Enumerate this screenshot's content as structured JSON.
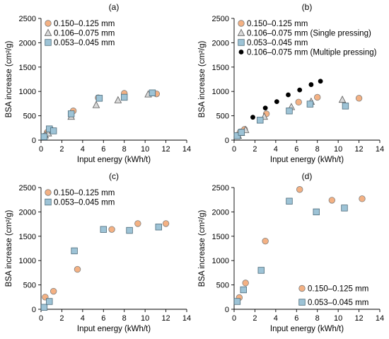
{
  "chart_data": [
    {
      "type": "scatter",
      "title": "(a)",
      "xlabel": "Input energy (kWh/t)",
      "ylabel": "BSA increase (cm²/g)",
      "xlim": [
        0,
        14
      ],
      "ylim": [
        0,
        2500
      ],
      "xticks": [
        "0",
        "2",
        "4",
        "6",
        "8",
        "10",
        "12",
        "14"
      ],
      "yticks": [
        "0",
        "500",
        "1000",
        "1500",
        "2000",
        "2500"
      ],
      "legend_position": "top-left",
      "series": [
        {
          "name": "0.150–0.125 mm",
          "marker": "circle",
          "color": "#f4b183",
          "x": [
            0.3,
            0.6,
            1.0,
            3.1,
            5.5,
            8.0,
            11.1
          ],
          "y": [
            80,
            160,
            200,
            600,
            870,
            960,
            950
          ]
        },
        {
          "name": "0.106–0.075 mm",
          "marker": "triangle",
          "color": "#d9d9d9",
          "x": [
            0.4,
            0.7,
            1.1,
            2.9,
            5.3,
            7.4,
            10.3
          ],
          "y": [
            100,
            140,
            200,
            480,
            720,
            820,
            940
          ]
        },
        {
          "name": "0.053–0.045 mm",
          "marker": "square",
          "color": "#9dc3d6",
          "x": [
            0.3,
            0.8,
            1.2,
            2.9,
            5.6,
            8.0,
            10.7
          ],
          "y": [
            70,
            230,
            190,
            540,
            860,
            880,
            970
          ]
        }
      ]
    },
    {
      "type": "scatter",
      "title": "(b)",
      "xlabel": "Input energy (kWh/t)",
      "ylabel": "BSA increase (cm²/g)",
      "xlim": [
        0,
        14
      ],
      "ylim": [
        0,
        2500
      ],
      "xticks": [
        "0",
        "2",
        "4",
        "6",
        "8",
        "10",
        "12",
        "14"
      ],
      "yticks": [
        "0",
        "500",
        "1000",
        "1500",
        "2000",
        "2500"
      ],
      "legend_position": "top-left",
      "series": [
        {
          "name": "0.150–0.125 mm",
          "marker": "circle",
          "color": "#f4b183",
          "x": [
            0.3,
            0.6,
            1.0,
            3.1,
            6.2,
            8.0,
            12.0
          ],
          "y": [
            100,
            170,
            220,
            540,
            780,
            880,
            860
          ]
        },
        {
          "name": "0.106–0.075 mm (Single pressing)",
          "marker": "triangle",
          "color": "#d9d9d9",
          "x": [
            0.4,
            0.7,
            1.1,
            2.9,
            5.5,
            7.4,
            10.4
          ],
          "y": [
            90,
            150,
            210,
            480,
            680,
            790,
            830
          ]
        },
        {
          "name": "0.053–0.045 mm",
          "marker": "square",
          "color": "#9dc3d6",
          "x": [
            0.3,
            0.7,
            2.5,
            5.3,
            7.3,
            10.7
          ],
          "y": [
            90,
            160,
            410,
            600,
            740,
            700
          ]
        },
        {
          "name": "0.106–0.075 mm (Multiple pressing)",
          "marker": "dot",
          "color": "#000000",
          "x": [
            1.8,
            3.0,
            4.1,
            5.2,
            6.3,
            7.4,
            8.3
          ],
          "y": [
            470,
            660,
            790,
            930,
            1030,
            1140,
            1210
          ]
        }
      ]
    },
    {
      "type": "scatter",
      "title": "(c)",
      "xlabel": "Input energy (kWh/t)",
      "ylabel": "BSA increase (cm²/g)",
      "xlim": [
        0,
        14
      ],
      "ylim": [
        0,
        2500
      ],
      "xticks": [
        "0",
        "2",
        "4",
        "6",
        "8",
        "10",
        "12",
        "14"
      ],
      "yticks": [
        "0",
        "500",
        "1000",
        "1500",
        "2000",
        "2500"
      ],
      "legend_position": "top-left",
      "series": [
        {
          "name": "0.150–0.125 mm",
          "marker": "circle",
          "color": "#f4b183",
          "x": [
            0.4,
            1.2,
            3.5,
            6.8,
            9.3,
            12.0
          ],
          "y": [
            250,
            370,
            820,
            1640,
            1760,
            1760
          ]
        },
        {
          "name": "0.053–0.045 mm",
          "marker": "square",
          "color": "#9dc3d6",
          "x": [
            0.3,
            0.8,
            3.2,
            6.0,
            8.5,
            11.3
          ],
          "y": [
            40,
            160,
            1200,
            1640,
            1620,
            1690
          ]
        }
      ]
    },
    {
      "type": "scatter",
      "title": "(d)",
      "xlabel": "Input energy (kWh/t)",
      "ylabel": "BSA increase (cm²/g)",
      "xlim": [
        0,
        14
      ],
      "ylim": [
        0,
        2500
      ],
      "xticks": [
        "0",
        "2",
        "4",
        "6",
        "8",
        "10",
        "12",
        "14"
      ],
      "yticks": [
        "0",
        "500",
        "1000",
        "1500",
        "2000",
        "2500"
      ],
      "legend_position": "bottom-right",
      "series": [
        {
          "name": "0.150–0.125 mm",
          "marker": "circle",
          "color": "#f4b183",
          "x": [
            0.5,
            1.1,
            3.0,
            6.3,
            9.4,
            12.3
          ],
          "y": [
            240,
            540,
            1400,
            2460,
            2240,
            2270
          ]
        },
        {
          "name": "0.053–0.045 mm",
          "marker": "square",
          "color": "#9dc3d6",
          "x": [
            0.3,
            0.9,
            2.6,
            5.3,
            7.9,
            10.6
          ],
          "y": [
            160,
            400,
            800,
            2220,
            2000,
            2080
          ]
        }
      ]
    }
  ]
}
